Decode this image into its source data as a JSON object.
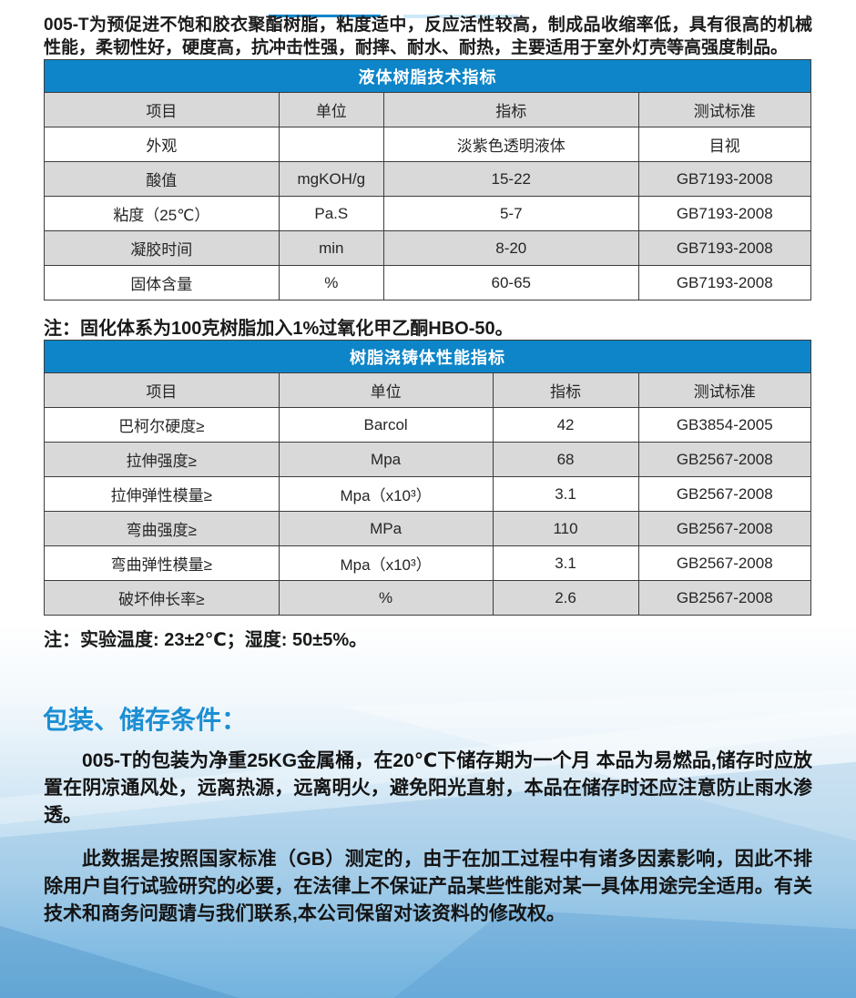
{
  "intro": {
    "text": "005-T为预促进不饱和胶衣聚酯树脂，粘度适中，反应活性较高，制成品收缩率低，具有很高的机械性能，柔韧性好，硬度高，抗冲击性强，耐摔、耐水、耐热，主要适用于室外灯壳等高强度制品。"
  },
  "liquid_table": {
    "title": "液体树脂技术指标",
    "headers": [
      "项目",
      "单位",
      "指标",
      "测试标准"
    ],
    "rows": [
      [
        "外观",
        "",
        "淡紫色透明液体",
        "目视"
      ],
      [
        "酸值",
        "mgKOH/g",
        "15-22",
        "GB7193-2008"
      ],
      [
        "粘度（25℃）",
        "Pa.S",
        "5-7",
        "GB7193-2008"
      ],
      [
        "凝胶时间",
        "min",
        "8-20",
        "GB7193-2008"
      ],
      [
        "固体含量",
        "%",
        "60-65",
        "GB7193-2008"
      ]
    ],
    "note": "注：固化体系为100克树脂加入1%过氧化甲乙酮HBO-50。"
  },
  "casting_table": {
    "title": "树脂浇铸体性能指标",
    "headers": [
      "项目",
      "单位",
      "指标",
      "测试标准"
    ],
    "rows": [
      [
        "巴柯尔硬度≥",
        "Barcol",
        "42",
        "GB3854-2005"
      ],
      [
        "拉伸强度≥",
        "Mpa",
        "68",
        "GB2567-2008"
      ],
      [
        "拉伸弹性模量≥",
        "Mpa（x10³）",
        "3.1",
        "GB2567-2008"
      ],
      [
        "弯曲强度≥",
        "MPa",
        "110",
        "GB2567-2008"
      ],
      [
        "弯曲弹性模量≥",
        "Mpa（x10³）",
        "3.1",
        "GB2567-2008"
      ],
      [
        "破坏伸长率≥",
        "%",
        "2.6",
        "GB2567-2008"
      ]
    ],
    "note": "注：实验温度: 23±2℃；湿度: 50±5%。"
  },
  "storage": {
    "heading": "包装、储存条件：",
    "para1": "005-T的包装为净重25KG金属桶，在20℃下储存期为一个月 本品为易燃品,储存时应放置在阴凉通风处，远离热源，远离明火，避免阳光直射，本品在储存时还应注意防止雨水渗透。",
    "para2": "此数据是按照国家标准（GB）测定的，由于在加工过程中有诸多因素影响，因此不排除用户自行试验研究的必要，在法律上不保证产品某些性能对某一具体用途完全适用。有关技术和商务问题请与我们联系,本公司保留对该资料的修改权。"
  },
  "colors": {
    "table_header_blue": "#0d85c8",
    "heading_blue": "#1b8ed3",
    "row_gray": "#d9d9d9",
    "border_dark": "#3d3d3d"
  }
}
